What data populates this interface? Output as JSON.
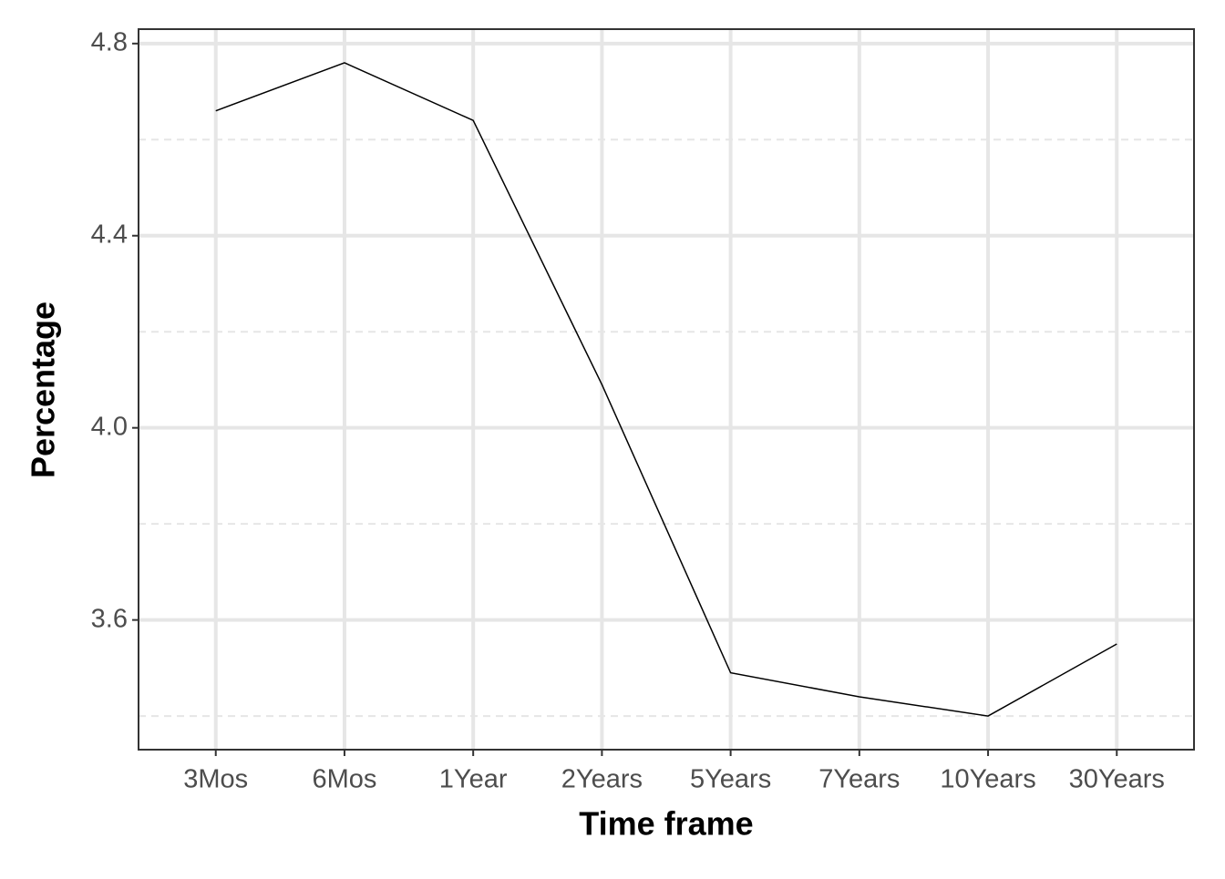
{
  "chart_data": {
    "type": "line",
    "x_label": "Time frame",
    "y_label": "Percentage",
    "categories": [
      "3Mos",
      "6Mos",
      "1Year",
      "2Years",
      "5Years",
      "7Years",
      "10Years",
      "30Years"
    ],
    "values": [
      4.66,
      4.76,
      4.64,
      4.09,
      3.49,
      3.44,
      3.4,
      3.55
    ],
    "color": "#000000",
    "ylim": [
      3.33,
      4.83
    ],
    "yticks": [
      3.6,
      {
        "value": 4,
        "label": "4.0"
      },
      4.4,
      4.8
    ],
    "minor_yticks": [
      3.4,
      3.8,
      4.2,
      4.6
    ],
    "grid": true
  }
}
